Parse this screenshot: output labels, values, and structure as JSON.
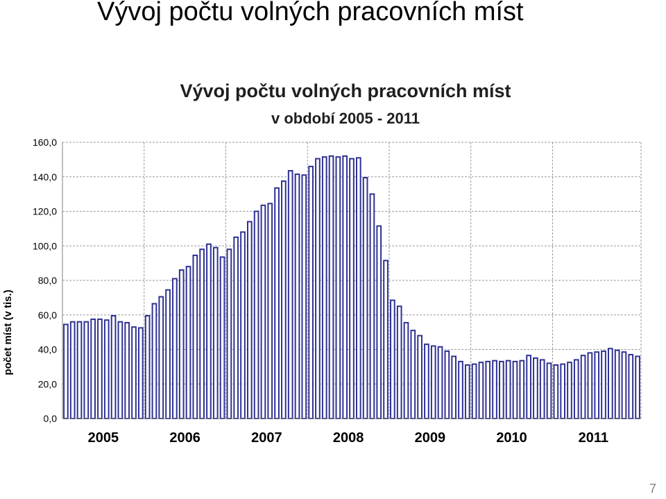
{
  "slide": {
    "title": "Vývoj počtu volných pracovních míst",
    "page_number": "7"
  },
  "chart_data": {
    "type": "bar",
    "title": "Vývoj počtu volných pracovních míst",
    "subtitle": "v období 2005 - 2011",
    "ylabel": "počet míst (v tis.)",
    "xlabel": "",
    "ylim": [
      0,
      160
    ],
    "yticks": [
      "0,0",
      "20,0",
      "40,0",
      "60,0",
      "80,0",
      "100,0",
      "120,0",
      "140,0",
      "160,0"
    ],
    "year_labels": [
      "2005",
      "2006",
      "2007",
      "2008",
      "2009",
      "2010",
      "2011"
    ],
    "grid": true,
    "bar_fill": "#2e3192",
    "bar_inner": "#ffffff",
    "values": [
      54.5,
      56.0,
      56.0,
      56.0,
      57.5,
      57.5,
      57.0,
      59.5,
      56.0,
      55.5,
      53.0,
      52.5,
      59.5,
      66.5,
      70.5,
      74.5,
      81.0,
      86.0,
      88.0,
      94.5,
      98.0,
      101.0,
      99.0,
      93.5,
      98.0,
      105.0,
      108.0,
      114.0,
      120.0,
      123.5,
      124.5,
      133.5,
      137.5,
      143.5,
      141.5,
      141.0,
      146.0,
      150.5,
      151.5,
      152.0,
      151.5,
      152.0,
      150.5,
      151.0,
      139.5,
      130.0,
      111.5,
      91.5,
      68.5,
      65.0,
      55.5,
      51.0,
      48.0,
      43.0,
      42.0,
      41.5,
      39.0,
      36.0,
      33.0,
      31.0,
      31.5,
      32.5,
      33.0,
      33.5,
      33.0,
      33.5,
      33.0,
      33.5,
      36.5,
      35.0,
      34.0,
      32.0,
      31.0,
      31.5,
      32.5,
      34.0,
      36.5,
      38.0,
      38.5,
      39.0,
      40.5,
      39.5,
      38.5,
      37.0,
      36.0
    ]
  }
}
